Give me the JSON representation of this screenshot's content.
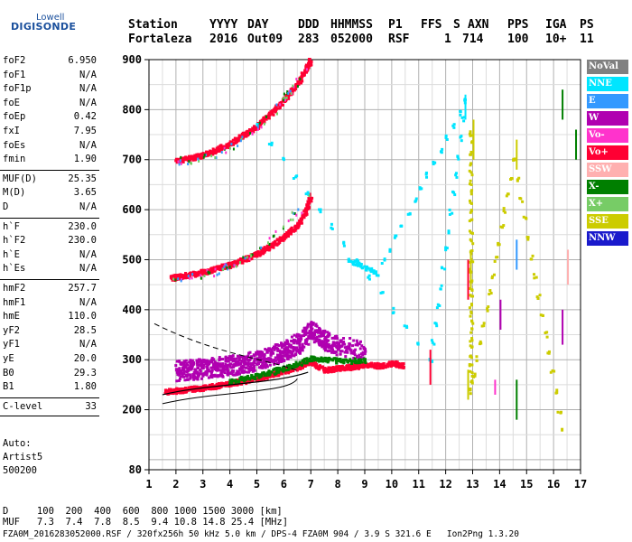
{
  "logo": {
    "top": "Lowell",
    "main": "DIGISONDE"
  },
  "header": {
    "labels": [
      "Station",
      "YYYY",
      "DAY",
      "DDD",
      "HHMMSS",
      "P1",
      "FFS",
      "S",
      "AXN",
      "PPS",
      "IGA",
      "PS"
    ],
    "values": [
      "Fortaleza",
      "2016",
      "Out09",
      "283",
      "052000",
      "RSF",
      "1",
      "714",
      "100",
      "10+",
      "11"
    ]
  },
  "params_group1": [
    {
      "name": "foF2",
      "value": "6.950"
    },
    {
      "name": "foF1",
      "value": "N/A"
    },
    {
      "name": "foF1p",
      "value": "N/A"
    },
    {
      "name": "foE",
      "value": "N/A"
    },
    {
      "name": "foEp",
      "value": "0.42"
    },
    {
      "name": "fxI",
      "value": "7.95"
    },
    {
      "name": "foEs",
      "value": "N/A"
    },
    {
      "name": "fmin",
      "value": "1.90"
    }
  ],
  "params_group2": [
    {
      "name": "MUF(D)",
      "value": "25.35"
    },
    {
      "name": "M(D)",
      "value": "3.65"
    },
    {
      "name": "D",
      "value": "N/A"
    }
  ],
  "params_group3": [
    {
      "name": "h`F",
      "value": "230.0"
    },
    {
      "name": "h`F2",
      "value": "230.0"
    },
    {
      "name": "h`E",
      "value": "N/A"
    },
    {
      "name": "h`Es",
      "value": "N/A"
    }
  ],
  "params_group4": [
    {
      "name": "hmF2",
      "value": "257.7"
    },
    {
      "name": "hmF1",
      "value": "N/A"
    },
    {
      "name": "hmE",
      "value": "110.0"
    },
    {
      "name": "yF2",
      "value": "28.5"
    },
    {
      "name": "yF1",
      "value": "N/A"
    },
    {
      "name": "yE",
      "value": "20.0"
    },
    {
      "name": "B0",
      "value": "29.3"
    },
    {
      "name": "B1",
      "value": "1.80"
    }
  ],
  "clevel": {
    "name": "C-level",
    "value": "33"
  },
  "auto": {
    "line1": "Auto:",
    "line2": "Artist5",
    "line3": "500200"
  },
  "legend": [
    {
      "label": "NoVal",
      "bg": "#808080",
      "fg": "#ffffff"
    },
    {
      "label": "NNE",
      "bg": "#00e5ff",
      "fg": "#ffffff"
    },
    {
      "label": "E",
      "bg": "#3399ff",
      "fg": "#ffffff"
    },
    {
      "label": "W",
      "bg": "#b000b0",
      "fg": "#ffffff"
    },
    {
      "label": "Vo-",
      "bg": "#ff33cc",
      "fg": "#ffffff"
    },
    {
      "label": "Vo+",
      "bg": "#ff0033",
      "fg": "#ffffff"
    },
    {
      "label": "SSW",
      "bg": "#ffb0b0",
      "fg": "#ffffff"
    },
    {
      "label": "X-",
      "bg": "#007f00",
      "fg": "#ffffff"
    },
    {
      "label": "X+",
      "bg": "#77cc66",
      "fg": "#ffffff"
    },
    {
      "label": "SSE",
      "bg": "#cccc00",
      "fg": "#ffffff"
    },
    {
      "label": "NNW",
      "bg": "#1a1acc",
      "fg": "#ffffff"
    }
  ],
  "footer": {
    "d_row": "D     100  200  400  600  800 1000 1500 3000 [km]",
    "muf_row": "MUF   7.3  7.4  7.8  8.5  9.4 10.8 14.8 25.4 [MHz]",
    "info": "FZA0M_2016283052000.RSF / 320fx256h 50 kHz 5.0 km / DPS-4 FZA0M 904 / 3.9 S 321.6 E   Ion2Png 1.3.20"
  },
  "chart_data": {
    "type": "scatter",
    "title": "",
    "xlabel": "",
    "ylabel": "",
    "xlim": [
      1,
      17
    ],
    "ylim": [
      80,
      900
    ],
    "x_ticks": [
      1,
      2,
      3,
      4,
      5,
      6,
      7,
      8,
      9,
      10,
      11,
      12,
      13,
      14,
      15,
      16,
      17
    ],
    "y_ticks": [
      80,
      200,
      300,
      400,
      500,
      600,
      700,
      800,
      900
    ],
    "grid": true,
    "legend_position": "right",
    "series": [
      {
        "name": "Vo+",
        "color": "#ff0033",
        "trace": "F-layer first hop",
        "points": [
          [
            1.6,
            238
          ],
          [
            2.0,
            240
          ],
          [
            2.5,
            243
          ],
          [
            3.0,
            246
          ],
          [
            3.5,
            250
          ],
          [
            4.0,
            255
          ],
          [
            4.5,
            260
          ],
          [
            5.0,
            266
          ],
          [
            5.5,
            272
          ],
          [
            6.0,
            280
          ],
          [
            6.5,
            288
          ],
          [
            6.9,
            298
          ],
          [
            7.5,
            282
          ],
          [
            8.0,
            285
          ],
          [
            8.5,
            288
          ],
          [
            9.0,
            292
          ],
          [
            9.5,
            290
          ],
          [
            10.0,
            295
          ],
          [
            10.4,
            290
          ]
        ]
      },
      {
        "name": "Vo+",
        "color": "#ff0033",
        "trace": "F-layer second hop",
        "points": [
          [
            1.8,
            465
          ],
          [
            2.0,
            468
          ],
          [
            2.5,
            472
          ],
          [
            3.0,
            478
          ],
          [
            3.5,
            485
          ],
          [
            4.0,
            492
          ],
          [
            4.5,
            502
          ],
          [
            5.0,
            514
          ],
          [
            5.5,
            530
          ],
          [
            6.0,
            548
          ],
          [
            6.5,
            572
          ],
          [
            6.8,
            600
          ],
          [
            6.95,
            630
          ]
        ]
      },
      {
        "name": "Vo+",
        "color": "#ff0033",
        "trace": "F-layer third hop",
        "points": [
          [
            2.0,
            700
          ],
          [
            2.5,
            705
          ],
          [
            3.0,
            712
          ],
          [
            3.5,
            722
          ],
          [
            4.0,
            735
          ],
          [
            4.5,
            752
          ],
          [
            5.0,
            770
          ],
          [
            5.5,
            795
          ],
          [
            6.0,
            822
          ],
          [
            6.5,
            855
          ],
          [
            6.8,
            885
          ],
          [
            6.95,
            900
          ]
        ]
      },
      {
        "name": "W",
        "color": "#b000b0",
        "trace": "spread F",
        "points": [
          [
            2.0,
            280
          ],
          [
            2.5,
            282
          ],
          [
            3.0,
            284
          ],
          [
            3.5,
            287
          ],
          [
            4.0,
            290
          ],
          [
            4.5,
            295
          ],
          [
            5.0,
            300
          ],
          [
            5.5,
            310
          ],
          [
            6.0,
            320
          ],
          [
            6.5,
            335
          ],
          [
            7.0,
            360
          ],
          [
            7.5,
            340
          ],
          [
            8.0,
            330
          ],
          [
            9.0,
            320
          ]
        ]
      },
      {
        "name": "X-",
        "color": "#007f00",
        "trace": "X-mode",
        "points": [
          [
            4.0,
            258
          ],
          [
            5.0,
            270
          ],
          [
            6.0,
            285
          ],
          [
            7.0,
            305
          ],
          [
            8.0,
            300
          ],
          [
            9.0,
            300
          ]
        ]
      },
      {
        "name": "NNE",
        "color": "#00e5ff",
        "trace": "oblique echoes",
        "points": [
          [
            8.4,
            500
          ],
          [
            9.4,
            475
          ],
          [
            12.7,
            820
          ],
          [
            11.4,
            300
          ],
          [
            5.0,
            770
          ]
        ]
      },
      {
        "name": "SSE",
        "color": "#cccc00",
        "trace": "oblique echoes",
        "points": [
          [
            12.9,
            755
          ],
          [
            12.9,
            480
          ],
          [
            12.9,
            240
          ],
          [
            14.5,
            700
          ],
          [
            16.3,
            160
          ]
        ]
      }
    ],
    "profile_curves": [
      "solid profile",
      "dashed profile"
    ]
  }
}
